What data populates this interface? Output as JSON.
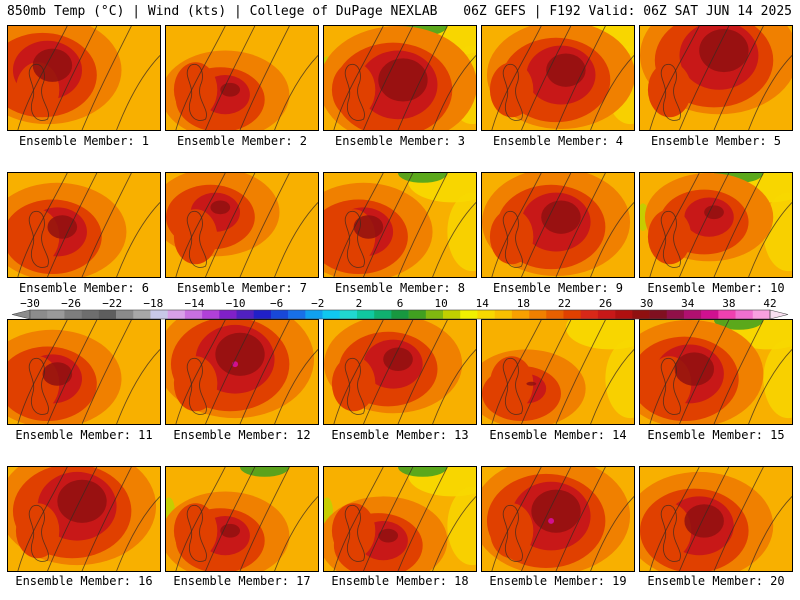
{
  "header": {
    "left": "850mb Temp (°C) | Wind (kts) | College of DuPage NEXLAB",
    "right": "06Z GEFS | F192 Valid: 06Z SAT JUN 14 2025"
  },
  "members": [
    "Ensemble Member: 1",
    "Ensemble Member: 2",
    "Ensemble Member: 3",
    "Ensemble Member: 4",
    "Ensemble Member: 5",
    "Ensemble Member: 6",
    "Ensemble Member: 7",
    "Ensemble Member: 8",
    "Ensemble Member: 9",
    "Ensemble Member: 10",
    "Ensemble Member: 11",
    "Ensemble Member: 12",
    "Ensemble Member: 13",
    "Ensemble Member: 14",
    "Ensemble Member: 15",
    "Ensemble Member: 16",
    "Ensemble Member: 17",
    "Ensemble Member: 18",
    "Ensemble Member: 19",
    "Ensemble Member: 20"
  ],
  "colorbar": {
    "unit": "°C",
    "tick_labels": [
      "-30",
      "-26",
      "-22",
      "-18",
      "-14",
      "-10",
      "-6",
      "-2",
      "2",
      "6",
      "10",
      "14",
      "18",
      "22",
      "26",
      "30",
      "34",
      "38",
      "42"
    ],
    "colors": [
      "#8c8c8c",
      "#9a9a9a",
      "#7e7e7e",
      "#6e6e6e",
      "#5e5e5e",
      "#8a8a8a",
      "#a8a8a8",
      "#c8c8e8",
      "#d8a0e8",
      "#c870e0",
      "#b040d8",
      "#8020c8",
      "#5020c0",
      "#2020c8",
      "#1848d8",
      "#1870e8",
      "#10a0f0",
      "#10c8f0",
      "#20d8d0",
      "#10c8a0",
      "#10b070",
      "#189840",
      "#40a020",
      "#80b810",
      "#c0d000",
      "#f0f000",
      "#f8d800",
      "#f8c000",
      "#f8a000",
      "#f08000",
      "#e86000",
      "#e04000",
      "#d82818",
      "#c81818",
      "#b01010",
      "#901010",
      "#801020",
      "#901048",
      "#b01070",
      "#d01090",
      "#f040b0",
      "#f070d0",
      "#f8a0e0"
    ]
  },
  "palette": {
    "bg": "#f8b000",
    "mid": "#f08000",
    "warm": "#e04000",
    "hot": "#c81818",
    "veryhot": "#901010",
    "cool": "#f8d800",
    "cold": "#c0d000",
    "green": "#40a020",
    "magenta": "#d01090"
  }
}
